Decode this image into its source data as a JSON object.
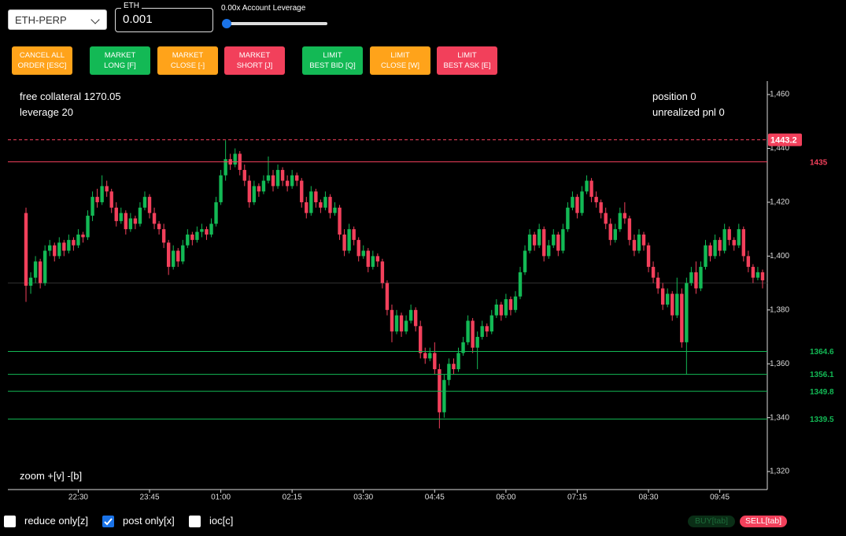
{
  "controls": {
    "symbol": "ETH-PERP",
    "size_label": "ETH",
    "size_value": "0.001",
    "leverage_label": "0.00x Account Leverage"
  },
  "buttons": [
    {
      "label": [
        "CANCEL ALL",
        "ORDER [ESC]"
      ],
      "color": "#ffa31a"
    },
    {
      "label": [
        "MARKET",
        "LONG [F]"
      ],
      "color": "#13b955"
    },
    {
      "label": [
        "MARKET",
        "CLOSE [-]"
      ],
      "color": "#ffa31a"
    },
    {
      "label": [
        "MARKET",
        "SHORT [J]"
      ],
      "color": "#f2405b"
    },
    {
      "label": [
        "LIMIT",
        "BEST BID [Q]"
      ],
      "color": "#13b955"
    },
    {
      "label": [
        "LIMIT",
        "CLOSE [W]"
      ],
      "color": "#ffa31a"
    },
    {
      "label": [
        "LIMIT",
        "BEST ASK [E]"
      ],
      "color": "#f2405b"
    }
  ],
  "info": {
    "free_collateral": "free collateral 1270.05",
    "leverage": "leverage 20",
    "position": "position 0",
    "pnl": "unrealized pnl 0",
    "zoom": "zoom +[v] -[b]"
  },
  "options": [
    {
      "label": "reduce only[z]",
      "checked": false
    },
    {
      "label": "post only[x]",
      "checked": true
    },
    {
      "label": "ioc[c]",
      "checked": false
    }
  ],
  "sides": {
    "buy": "BUY[tab]",
    "sell": "SELL[tab]"
  },
  "chart_data": {
    "type": "candlestick",
    "up_color": "#13b955",
    "down_color": "#f2405b",
    "ylim": [
      1313.3,
      1465
    ],
    "yticks": [
      {
        "value": 1320,
        "label": "1,320"
      },
      {
        "value": 1340,
        "label": "1,340"
      },
      {
        "value": 1360,
        "label": "1,360"
      },
      {
        "value": 1380,
        "label": "1,380"
      },
      {
        "value": 1400,
        "label": "1,400"
      },
      {
        "value": 1420,
        "label": "1,420"
      },
      {
        "value": 1440,
        "label": "1,440"
      },
      {
        "value": 1460,
        "label": "1,460"
      }
    ],
    "xlim": [
      -0.5,
      156
    ],
    "xticks": [
      {
        "value": 11,
        "label": "22:30"
      },
      {
        "value": 26,
        "label": "23:45"
      },
      {
        "value": 41,
        "label": "01:00"
      },
      {
        "value": 56,
        "label": "02:15"
      },
      {
        "value": 71,
        "label": "03:30"
      },
      {
        "value": 86,
        "label": "04:45"
      },
      {
        "value": 101,
        "label": "06:00"
      },
      {
        "value": 116,
        "label": "07:15"
      },
      {
        "value": 131,
        "label": "08:30"
      },
      {
        "value": 146,
        "label": "09:45"
      }
    ],
    "mid_line": 1390,
    "price_lines": [
      {
        "value": 1443.2,
        "color": "#f2405b",
        "dashed": true
      },
      {
        "value": 1435,
        "color": "#f2405b",
        "dashed": false
      },
      {
        "value": 1364.6,
        "color": "#13b955",
        "dashed": false
      },
      {
        "value": 1356.1,
        "color": "#13b955",
        "dashed": false
      },
      {
        "value": 1349.8,
        "color": "#13b955",
        "dashed": false
      },
      {
        "value": 1339.5,
        "color": "#13b955",
        "dashed": false
      }
    ],
    "candles": [
      [
        1416,
        1418,
        1383,
        1389
      ],
      [
        1389,
        1394,
        1386,
        1392
      ],
      [
        1392,
        1400,
        1390,
        1398
      ],
      [
        1398,
        1399,
        1388,
        1390
      ],
      [
        1390,
        1404,
        1389,
        1402
      ],
      [
        1402,
        1406,
        1400,
        1404
      ],
      [
        1404,
        1405,
        1398,
        1400
      ],
      [
        1400,
        1407,
        1399,
        1405
      ],
      [
        1405,
        1406,
        1400,
        1402
      ],
      [
        1402,
        1408,
        1401,
        1406
      ],
      [
        1406,
        1407,
        1402,
        1404
      ],
      [
        1404,
        1410,
        1403,
        1408
      ],
      [
        1408,
        1409,
        1405,
        1407
      ],
      [
        1407,
        1417,
        1406,
        1415
      ],
      [
        1415,
        1424,
        1413,
        1422
      ],
      [
        1422,
        1425,
        1418,
        1420
      ],
      [
        1420,
        1430,
        1419,
        1426
      ],
      [
        1426,
        1428,
        1422,
        1424
      ],
      [
        1424,
        1425,
        1416,
        1418
      ],
      [
        1418,
        1420,
        1411,
        1413
      ],
      [
        1413,
        1418,
        1412,
        1416
      ],
      [
        1416,
        1417,
        1408,
        1410
      ],
      [
        1410,
        1416,
        1409,
        1414
      ],
      [
        1414,
        1415,
        1410,
        1412
      ],
      [
        1412,
        1420,
        1411,
        1418
      ],
      [
        1418,
        1424,
        1417,
        1422
      ],
      [
        1422,
        1423,
        1414,
        1416
      ],
      [
        1416,
        1418,
        1410,
        1412
      ],
      [
        1412,
        1413,
        1408,
        1410
      ],
      [
        1410,
        1412,
        1403,
        1405
      ],
      [
        1405,
        1406,
        1393,
        1396
      ],
      [
        1396,
        1404,
        1395,
        1402
      ],
      [
        1402,
        1403,
        1396,
        1398
      ],
      [
        1398,
        1406,
        1397,
        1404
      ],
      [
        1404,
        1410,
        1403,
        1408
      ],
      [
        1408,
        1409,
        1404,
        1406
      ],
      [
        1406,
        1411,
        1405,
        1409
      ],
      [
        1409,
        1412,
        1407,
        1410
      ],
      [
        1410,
        1411,
        1406,
        1408
      ],
      [
        1408,
        1414,
        1407,
        1412
      ],
      [
        1412,
        1422,
        1411,
        1420
      ],
      [
        1420,
        1432,
        1419,
        1430
      ],
      [
        1430,
        1443,
        1428,
        1436
      ],
      [
        1436,
        1438,
        1432,
        1434
      ],
      [
        1434,
        1440,
        1433,
        1438
      ],
      [
        1438,
        1439,
        1430,
        1432
      ],
      [
        1432,
        1434,
        1426,
        1428
      ],
      [
        1428,
        1430,
        1418,
        1420
      ],
      [
        1420,
        1428,
        1419,
        1426
      ],
      [
        1426,
        1427,
        1422,
        1424
      ],
      [
        1424,
        1430,
        1423,
        1428
      ],
      [
        1428,
        1437,
        1427,
        1430
      ],
      [
        1430,
        1432,
        1424,
        1426
      ],
      [
        1426,
        1434,
        1425,
        1432
      ],
      [
        1432,
        1433,
        1426,
        1428
      ],
      [
        1428,
        1430,
        1424,
        1426
      ],
      [
        1426,
        1432,
        1425,
        1430
      ],
      [
        1430,
        1431,
        1426,
        1428
      ],
      [
        1428,
        1429,
        1418,
        1420
      ],
      [
        1420,
        1422,
        1414,
        1416
      ],
      [
        1416,
        1426,
        1415,
        1424
      ],
      [
        1424,
        1425,
        1418,
        1420
      ],
      [
        1420,
        1421,
        1416,
        1418
      ],
      [
        1418,
        1424,
        1417,
        1422
      ],
      [
        1422,
        1423,
        1414,
        1416
      ],
      [
        1416,
        1420,
        1415,
        1418
      ],
      [
        1418,
        1419,
        1406,
        1408
      ],
      [
        1408,
        1410,
        1400,
        1402
      ],
      [
        1402,
        1412,
        1401,
        1410
      ],
      [
        1410,
        1411,
        1404,
        1406
      ],
      [
        1406,
        1407,
        1398,
        1400
      ],
      [
        1400,
        1404,
        1399,
        1402
      ],
      [
        1402,
        1403,
        1394,
        1396
      ],
      [
        1396,
        1402,
        1395,
        1400
      ],
      [
        1400,
        1401,
        1396,
        1398
      ],
      [
        1398,
        1399,
        1388,
        1390
      ],
      [
        1390,
        1391,
        1378,
        1380
      ],
      [
        1380,
        1382,
        1368,
        1372
      ],
      [
        1372,
        1380,
        1371,
        1378
      ],
      [
        1378,
        1379,
        1370,
        1372
      ],
      [
        1372,
        1378,
        1371,
        1376
      ],
      [
        1376,
        1382,
        1375,
        1380
      ],
      [
        1380,
        1381,
        1372,
        1374
      ],
      [
        1374,
        1376,
        1362,
        1364
      ],
      [
        1364,
        1366,
        1360,
        1362
      ],
      [
        1362,
        1366,
        1361,
        1364
      ],
      [
        1364,
        1368,
        1356,
        1358
      ],
      [
        1358,
        1360,
        1336,
        1342
      ],
      [
        1342,
        1356,
        1340,
        1354
      ],
      [
        1354,
        1362,
        1352,
        1360
      ],
      [
        1360,
        1362,
        1356,
        1358
      ],
      [
        1358,
        1366,
        1357,
        1364
      ],
      [
        1364,
        1370,
        1363,
        1368
      ],
      [
        1368,
        1378,
        1367,
        1376
      ],
      [
        1376,
        1377,
        1364,
        1366
      ],
      [
        1366,
        1372,
        1358,
        1370
      ],
      [
        1370,
        1376,
        1369,
        1374
      ],
      [
        1374,
        1375,
        1370,
        1372
      ],
      [
        1372,
        1380,
        1371,
        1378
      ],
      [
        1378,
        1384,
        1377,
        1382
      ],
      [
        1382,
        1383,
        1376,
        1378
      ],
      [
        1378,
        1386,
        1377,
        1384
      ],
      [
        1384,
        1385,
        1378,
        1380
      ],
      [
        1380,
        1387,
        1379,
        1385
      ],
      [
        1385,
        1396,
        1384,
        1394
      ],
      [
        1394,
        1404,
        1393,
        1402
      ],
      [
        1402,
        1410,
        1401,
        1408
      ],
      [
        1408,
        1409,
        1402,
        1404
      ],
      [
        1404,
        1412,
        1403,
        1410
      ],
      [
        1410,
        1411,
        1398,
        1400
      ],
      [
        1400,
        1406,
        1399,
        1404
      ],
      [
        1404,
        1410,
        1403,
        1408
      ],
      [
        1408,
        1409,
        1400,
        1402
      ],
      [
        1402,
        1412,
        1401,
        1410
      ],
      [
        1410,
        1420,
        1409,
        1418
      ],
      [
        1418,
        1424,
        1417,
        1422
      ],
      [
        1422,
        1423,
        1414,
        1416
      ],
      [
        1416,
        1426,
        1415,
        1424
      ],
      [
        1424,
        1430,
        1423,
        1428
      ],
      [
        1428,
        1429,
        1420,
        1422
      ],
      [
        1422,
        1424,
        1418,
        1420
      ],
      [
        1420,
        1421,
        1414,
        1416
      ],
      [
        1416,
        1418,
        1410,
        1412
      ],
      [
        1412,
        1414,
        1404,
        1406
      ],
      [
        1406,
        1412,
        1405,
        1410
      ],
      [
        1410,
        1418,
        1409,
        1416
      ],
      [
        1416,
        1420,
        1412,
        1414
      ],
      [
        1414,
        1415,
        1404,
        1406
      ],
      [
        1406,
        1408,
        1400,
        1402
      ],
      [
        1402,
        1410,
        1401,
        1408
      ],
      [
        1408,
        1409,
        1402,
        1404
      ],
      [
        1404,
        1405,
        1394,
        1396
      ],
      [
        1396,
        1398,
        1390,
        1392
      ],
      [
        1392,
        1394,
        1386,
        1388
      ],
      [
        1388,
        1390,
        1380,
        1382
      ],
      [
        1382,
        1388,
        1381,
        1386
      ],
      [
        1386,
        1387,
        1376,
        1378
      ],
      [
        1378,
        1392,
        1377,
        1386
      ],
      [
        1386,
        1388,
        1366,
        1368
      ],
      [
        1368,
        1392,
        1356,
        1390
      ],
      [
        1390,
        1396,
        1389,
        1394
      ],
      [
        1394,
        1398,
        1386,
        1388
      ],
      [
        1388,
        1398,
        1387,
        1396
      ],
      [
        1396,
        1406,
        1395,
        1404
      ],
      [
        1404,
        1405,
        1398,
        1400
      ],
      [
        1400,
        1408,
        1399,
        1406
      ],
      [
        1406,
        1407,
        1400,
        1402
      ],
      [
        1402,
        1412,
        1401,
        1410
      ],
      [
        1410,
        1411,
        1404,
        1406
      ],
      [
        1406,
        1407,
        1402,
        1404
      ],
      [
        1404,
        1412,
        1403,
        1410
      ],
      [
        1410,
        1411,
        1398,
        1400
      ],
      [
        1400,
        1402,
        1394,
        1396
      ],
      [
        1396,
        1397,
        1390,
        1392
      ],
      [
        1392,
        1396,
        1391,
        1394
      ],
      [
        1394,
        1395,
        1388,
        1391
      ]
    ]
  }
}
